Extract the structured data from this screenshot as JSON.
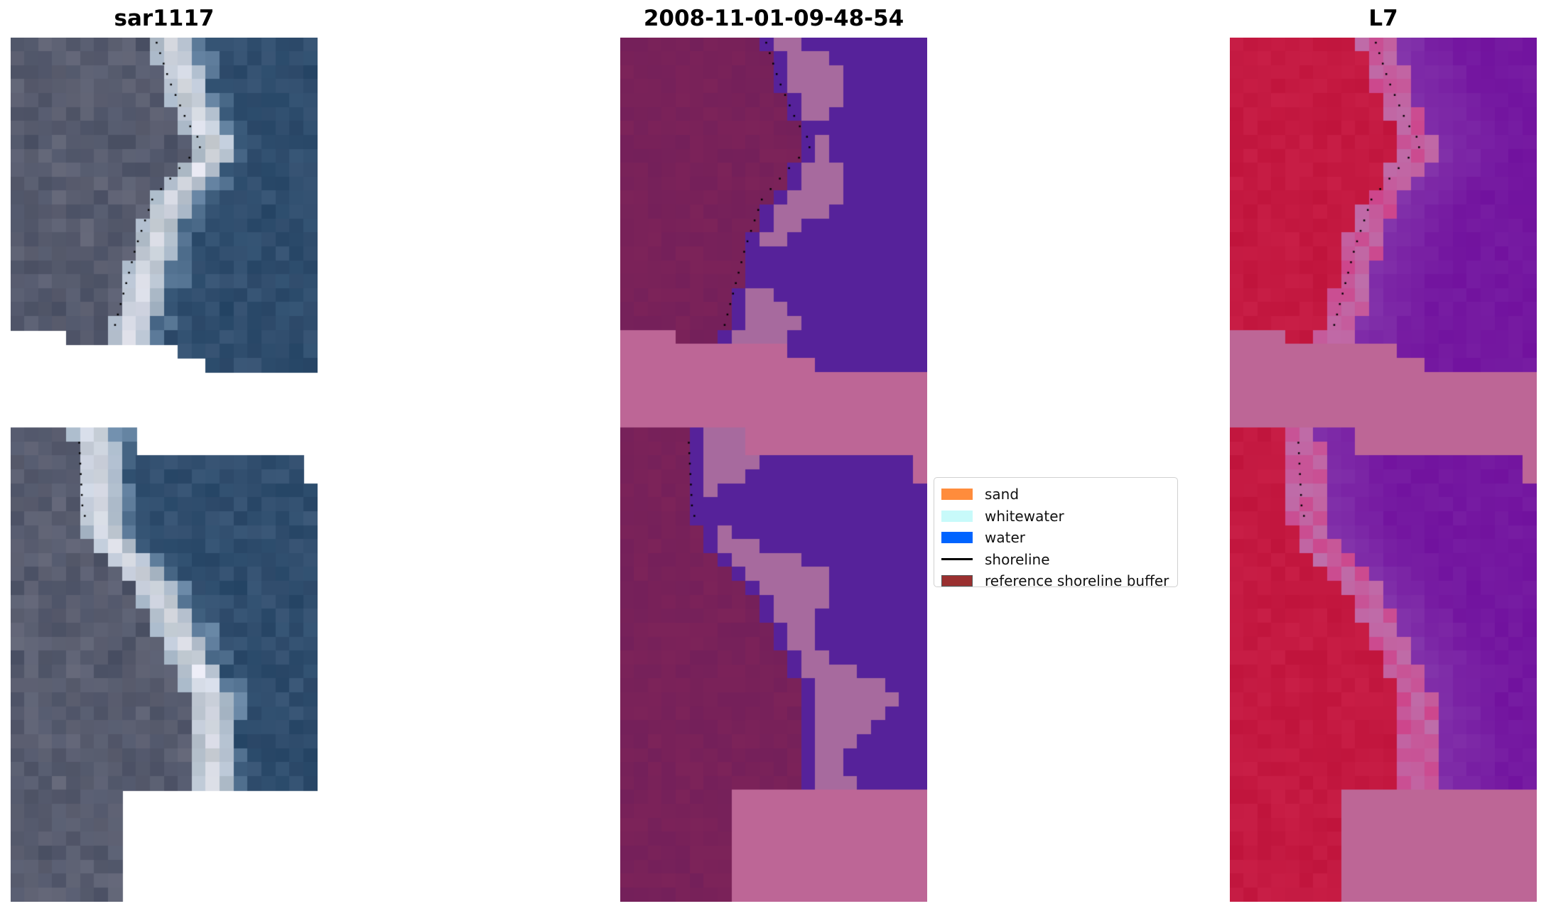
{
  "panels": [
    {
      "title": "sar1117",
      "kind": "rgb"
    },
    {
      "title": "2008-11-01-09-48-54",
      "kind": "classified"
    },
    {
      "title": "L7",
      "kind": "index"
    }
  ],
  "colors": {
    "cloud_mask": "#bd6696",
    "water_class": "#56229a",
    "whitewater_class": "#a76a9e",
    "land_buffer": "#74205a",
    "index_low": "#c0143c",
    "index_high": "#7417a0"
  },
  "legend": {
    "items": [
      {
        "label": "sand",
        "color": "#ff8c3c",
        "type": "patch"
      },
      {
        "label": "whitewater",
        "color": "#c8fafa",
        "type": "patch"
      },
      {
        "label": "water",
        "color": "#0064ff",
        "type": "patch"
      },
      {
        "label": "shoreline",
        "color": "#000000",
        "type": "line"
      },
      {
        "label": "reference shoreline buffer",
        "color": "#9a3030",
        "type": "patch"
      }
    ]
  }
}
